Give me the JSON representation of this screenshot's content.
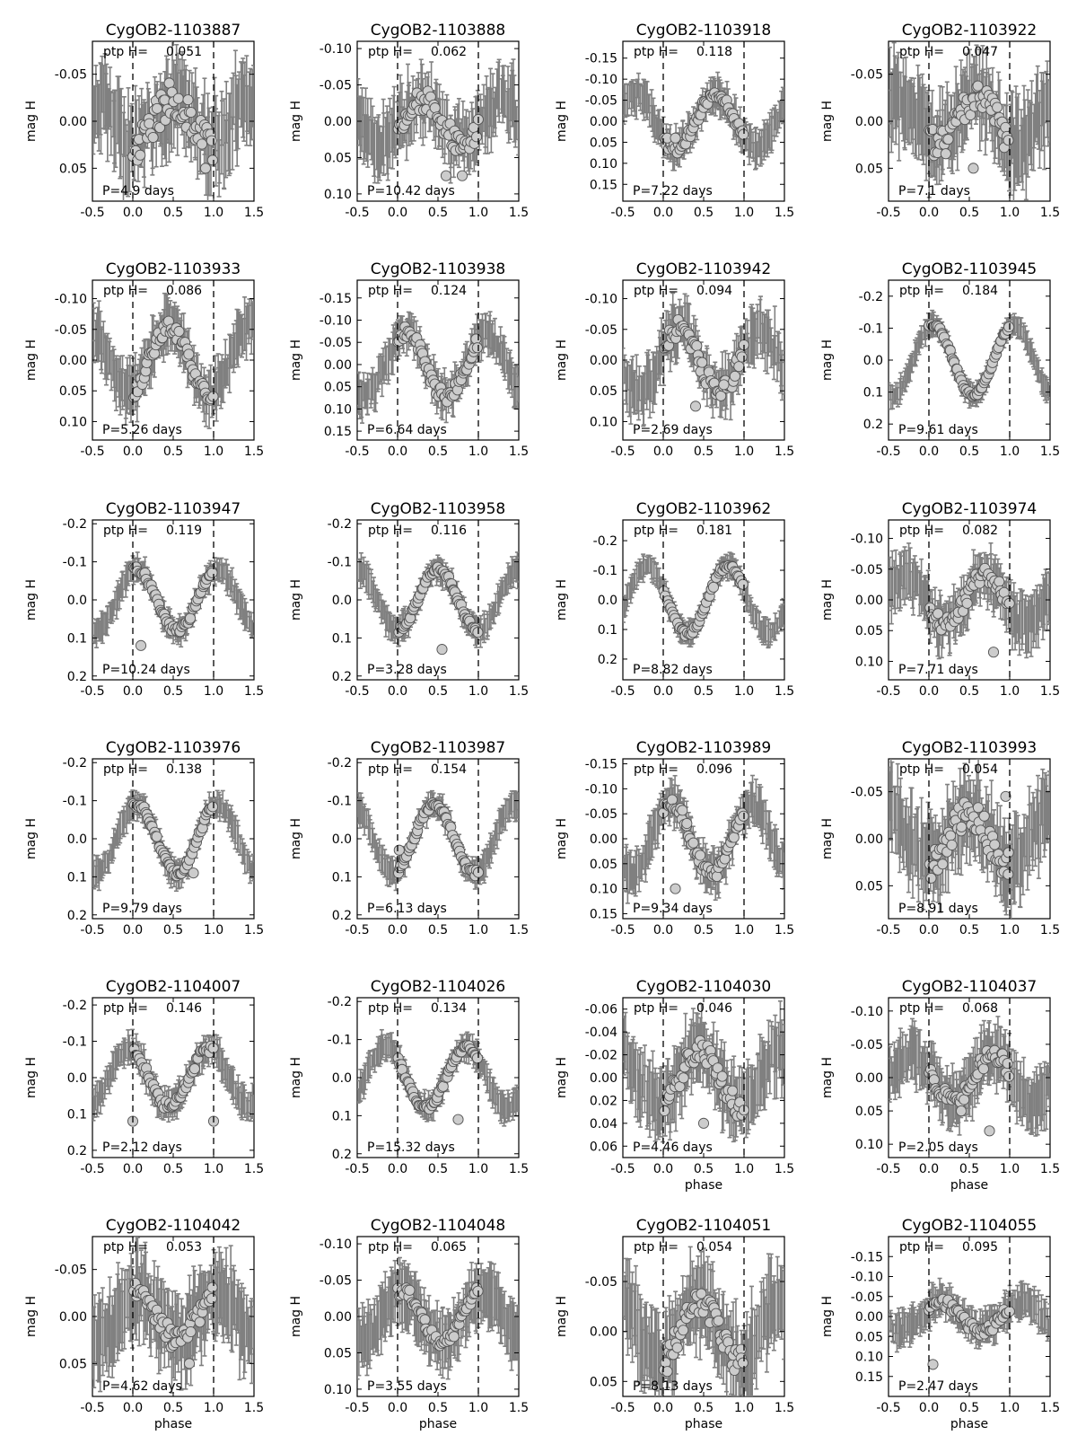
{
  "figure": {
    "series_color": "#808080",
    "point_color": "#cccccc"
  },
  "chart_data": [
    {
      "type": "scatter",
      "title": "CygOB2-1103887",
      "ptp_label": "ptp H=",
      "ptp_value": "0.051",
      "period_label": "P=4.9 days",
      "ylabel": "mag H",
      "xlabel": "",
      "xlim": [
        -0.5,
        1.5
      ],
      "ylim": [
        0.085,
        -0.085
      ],
      "yticks": [
        "-0.05",
        "0.00",
        "0.05"
      ],
      "xticks": [
        "-0.5",
        "0.0",
        "0.5",
        "1.0",
        "1.5"
      ],
      "amplitude": 0.05,
      "min_phase": 0.5,
      "noise": 0.025,
      "err": 0.035,
      "outliers": [
        [
          0.9,
          0.05
        ]
      ]
    },
    {
      "type": "scatter",
      "title": "CygOB2-1103888",
      "ptp_label": "ptp H=",
      "ptp_value": "0.062",
      "period_label": "P=10.42 days",
      "ylabel": "mag H",
      "xlabel": "",
      "xlim": [
        -0.5,
        1.5
      ],
      "ylim": [
        0.11,
        -0.11
      ],
      "yticks": [
        "-0.10",
        "-0.05",
        "0.00",
        "0.05",
        "0.10"
      ],
      "xticks": [
        "-0.5",
        "0.0",
        "0.5",
        "1.0",
        "1.5"
      ],
      "amplitude": 0.06,
      "min_phase": 0.3,
      "noise": 0.02,
      "err": 0.035,
      "outliers": [
        [
          0.6,
          0.075
        ],
        [
          0.8,
          0.075
        ]
      ]
    },
    {
      "type": "scatter",
      "title": "CygOB2-1103918",
      "ptp_label": "ptp H=",
      "ptp_value": "0.118",
      "period_label": "P=7.22 days",
      "ylabel": "mag H",
      "xlabel": "",
      "xlim": [
        -0.5,
        1.5
      ],
      "ylim": [
        0.19,
        -0.19
      ],
      "yticks": [
        "-0.15",
        "-0.10",
        "-0.05",
        "0.00",
        "0.05",
        "0.10",
        "0.15"
      ],
      "xticks": [
        "-0.5",
        "0.0",
        "0.5",
        "1.0",
        "1.5"
      ],
      "amplitude": 0.13,
      "min_phase": 0.65,
      "noise": 0.015,
      "err": 0.035,
      "outliers": [
        [
          0.05,
          0.04
        ],
        [
          0.15,
          0.04
        ]
      ]
    },
    {
      "type": "scatter",
      "title": "CygOB2-1103922",
      "ptp_label": "ptp H=",
      "ptp_value": "0.047",
      "period_label": "P=7.1 days",
      "ylabel": "mag H",
      "xlabel": "",
      "xlim": [
        -0.5,
        1.5
      ],
      "ylim": [
        0.085,
        -0.085
      ],
      "yticks": [
        "-0.05",
        "0.00",
        "0.05"
      ],
      "xticks": [
        "-0.5",
        "0.0",
        "0.5",
        "1.0",
        "1.5"
      ],
      "amplitude": 0.05,
      "min_phase": 0.6,
      "noise": 0.02,
      "err": 0.035,
      "outliers": [
        [
          0.55,
          0.05
        ]
      ]
    },
    {
      "type": "scatter",
      "title": "CygOB2-1103933",
      "ptp_label": "ptp H=",
      "ptp_value": "0.086",
      "period_label": "P=5.26 days",
      "ylabel": "mag H",
      "xlabel": "",
      "xlim": [
        -0.5,
        1.5
      ],
      "ylim": [
        0.13,
        -0.13
      ],
      "yticks": [
        "-0.10",
        "-0.05",
        "0.00",
        "0.05",
        "0.10"
      ],
      "xticks": [
        "-0.5",
        "0.0",
        "0.5",
        "1.0",
        "1.5"
      ],
      "amplitude": 0.11,
      "min_phase": 0.45,
      "noise": 0.015,
      "err": 0.035,
      "outliers": []
    },
    {
      "type": "scatter",
      "title": "CygOB2-1103938",
      "ptp_label": "ptp H=",
      "ptp_value": "0.124",
      "period_label": "P=6.64 days",
      "ylabel": "mag H",
      "xlabel": "",
      "xlim": [
        -0.5,
        1.5
      ],
      "ylim": [
        0.17,
        -0.19
      ],
      "yticks": [
        "-0.15",
        "-0.10",
        "-0.05",
        "0.00",
        "0.05",
        "0.10",
        "0.15"
      ],
      "xticks": [
        "-0.5",
        "0.0",
        "0.5",
        "1.0",
        "1.5"
      ],
      "amplitude": 0.14,
      "min_phase": 0.1,
      "noise": 0.02,
      "err": 0.035,
      "outliers": []
    },
    {
      "type": "scatter",
      "title": "CygOB2-1103942",
      "ptp_label": "ptp H=",
      "ptp_value": "0.094",
      "period_label": "P=2.69 days",
      "ylabel": "mag H",
      "xlabel": "",
      "xlim": [
        -0.5,
        1.5
      ],
      "ylim": [
        0.13,
        -0.13
      ],
      "yticks": [
        "-0.10",
        "-0.05",
        "0.00",
        "0.05",
        "0.10"
      ],
      "xticks": [
        "-0.5",
        "0.0",
        "0.5",
        "1.0",
        "1.5"
      ],
      "amplitude": 0.1,
      "min_phase": 0.2,
      "noise": 0.02,
      "err": 0.035,
      "outliers": [
        [
          0.4,
          0.075
        ],
        [
          0.75,
          0.04
        ]
      ]
    },
    {
      "type": "scatter",
      "title": "CygOB2-1103945",
      "ptp_label": "ptp H=",
      "ptp_value": "0.184",
      "period_label": "P=9.61 days",
      "ylabel": "mag H",
      "xlabel": "",
      "xlim": [
        -0.5,
        1.5
      ],
      "ylim": [
        0.25,
        -0.25
      ],
      "yticks": [
        "-0.2",
        "-0.1",
        "0.0",
        "0.1",
        "0.2"
      ],
      "xticks": [
        "-0.5",
        "0.0",
        "0.5",
        "1.0",
        "1.5"
      ],
      "amplitude": 0.22,
      "min_phase": 0.05,
      "noise": 0.008,
      "err": 0.03,
      "outliers": []
    },
    {
      "type": "scatter",
      "title": "CygOB2-1103947",
      "ptp_label": "ptp H=",
      "ptp_value": "0.119",
      "period_label": "P=10.24 days",
      "ylabel": "mag H",
      "xlabel": "",
      "xlim": [
        -0.5,
        1.5
      ],
      "ylim": [
        0.21,
        -0.21
      ],
      "yticks": [
        "-0.2",
        "-0.1",
        "0.0",
        "0.1",
        "0.2"
      ],
      "xticks": [
        "-0.5",
        "0.0",
        "0.5",
        "1.0",
        "1.5"
      ],
      "amplitude": 0.16,
      "min_phase": 0.05,
      "noise": 0.01,
      "err": 0.03,
      "outliers": [
        [
          0.1,
          0.12
        ]
      ]
    },
    {
      "type": "scatter",
      "title": "CygOB2-1103958",
      "ptp_label": "ptp H=",
      "ptp_value": "0.116",
      "period_label": "P=3.28 days",
      "ylabel": "mag H",
      "xlabel": "",
      "xlim": [
        -0.5,
        1.5
      ],
      "ylim": [
        0.21,
        -0.21
      ],
      "yticks": [
        "-0.2",
        "-0.1",
        "0.0",
        "0.1",
        "0.2"
      ],
      "xticks": [
        "-0.5",
        "0.0",
        "0.5",
        "1.0",
        "1.5"
      ],
      "amplitude": 0.16,
      "min_phase": 0.5,
      "noise": 0.01,
      "err": 0.03,
      "outliers": [
        [
          0.55,
          0.13
        ]
      ]
    },
    {
      "type": "scatter",
      "title": "CygOB2-1103962",
      "ptp_label": "ptp H=",
      "ptp_value": "0.181",
      "period_label": "P=8.82 days",
      "ylabel": "mag H",
      "xlabel": "",
      "xlim": [
        -0.5,
        1.5
      ],
      "ylim": [
        0.27,
        -0.27
      ],
      "yticks": [
        "-0.2",
        "-0.1",
        "0.0",
        "0.1",
        "0.2"
      ],
      "xticks": [
        "-0.5",
        "0.0",
        "0.5",
        "1.0",
        "1.5"
      ],
      "amplitude": 0.23,
      "min_phase": 0.8,
      "noise": 0.01,
      "err": 0.035,
      "outliers": []
    },
    {
      "type": "scatter",
      "title": "CygOB2-1103974",
      "ptp_label": "ptp H=",
      "ptp_value": "0.082",
      "period_label": "P=7.71 days",
      "ylabel": "mag H",
      "xlabel": "",
      "xlim": [
        -0.5,
        1.5
      ],
      "ylim": [
        0.13,
        -0.13
      ],
      "yticks": [
        "-0.10",
        "-0.05",
        "0.00",
        "0.05",
        "0.10"
      ],
      "xticks": [
        "-0.5",
        "0.0",
        "0.5",
        "1.0",
        "1.5"
      ],
      "amplitude": 0.08,
      "min_phase": 0.7,
      "noise": 0.015,
      "err": 0.035,
      "outliers": [
        [
          0.8,
          0.085
        ]
      ]
    },
    {
      "type": "scatter",
      "title": "CygOB2-1103976",
      "ptp_label": "ptp H=",
      "ptp_value": "0.138",
      "period_label": "P=9.79 days",
      "ylabel": "mag H",
      "xlabel": "",
      "xlim": [
        -0.5,
        1.5
      ],
      "ylim": [
        0.21,
        -0.21
      ],
      "yticks": [
        "-0.2",
        "-0.1",
        "0.0",
        "0.1",
        "0.2"
      ],
      "xticks": [
        "-0.5",
        "0.0",
        "0.5",
        "1.0",
        "1.5"
      ],
      "amplitude": 0.18,
      "min_phase": 0.05,
      "noise": 0.01,
      "err": 0.03,
      "outliers": [
        [
          0.75,
          0.09
        ]
      ]
    },
    {
      "type": "scatter",
      "title": "CygOB2-1103987",
      "ptp_label": "ptp H=",
      "ptp_value": "0.154",
      "period_label": "P=6.13 days",
      "ylabel": "mag H",
      "xlabel": "",
      "xlim": [
        -0.5,
        1.5
      ],
      "ylim": [
        0.21,
        -0.21
      ],
      "yticks": [
        "-0.2",
        "-0.1",
        "0.0",
        "0.1",
        "0.2"
      ],
      "xticks": [
        "-0.5",
        "0.0",
        "0.5",
        "1.0",
        "1.5"
      ],
      "amplitude": 0.18,
      "min_phase": 0.45,
      "noise": 0.01,
      "err": 0.03,
      "outliers": [
        [
          0.02,
          0.03
        ]
      ]
    },
    {
      "type": "scatter",
      "title": "CygOB2-1103989",
      "ptp_label": "ptp H=",
      "ptp_value": "0.096",
      "period_label": "P=9.34 days",
      "ylabel": "mag H",
      "xlabel": "",
      "xlim": [
        -0.5,
        1.5
      ],
      "ylim": [
        0.16,
        -0.16
      ],
      "yticks": [
        "-0.15",
        "-0.10",
        "-0.05",
        "0.00",
        "0.05",
        "0.10",
        "0.15"
      ],
      "xticks": [
        "-0.5",
        "0.0",
        "0.5",
        "1.0",
        "1.5"
      ],
      "amplitude": 0.14,
      "min_phase": 0.1,
      "noise": 0.015,
      "err": 0.035,
      "outliers": [
        [
          0.15,
          0.1
        ]
      ]
    },
    {
      "type": "scatter",
      "title": "CygOB2-1103993",
      "ptp_label": "ptp H=",
      "ptp_value": "0.054",
      "period_label": "P=8.91 days",
      "ylabel": "mag H",
      "xlabel": "",
      "xlim": [
        -0.5,
        1.5
      ],
      "ylim": [
        0.085,
        -0.085
      ],
      "yticks": [
        "-0.05",
        "0.00",
        "0.05"
      ],
      "xticks": [
        "-0.5",
        "0.0",
        "0.5",
        "1.0",
        "1.5"
      ],
      "amplitude": 0.055,
      "min_phase": 0.5,
      "noise": 0.02,
      "err": 0.035,
      "outliers": [
        [
          0.95,
          -0.045
        ]
      ]
    },
    {
      "type": "scatter",
      "title": "CygOB2-1104007",
      "ptp_label": "ptp H=",
      "ptp_value": "0.146",
      "period_label": "P=2.12 days",
      "ylabel": "mag H",
      "xlabel": "",
      "xlim": [
        -0.5,
        1.5
      ],
      "ylim": [
        0.22,
        -0.22
      ],
      "yticks": [
        "-0.2",
        "-0.1",
        "0.0",
        "0.1",
        "0.2"
      ],
      "xticks": [
        "-0.5",
        "0.0",
        "0.5",
        "1.0",
        "1.5"
      ],
      "amplitude": 0.16,
      "min_phase": 0.95,
      "noise": 0.015,
      "err": 0.035,
      "outliers": [
        [
          0.0,
          0.12
        ],
        [
          1.0,
          0.12
        ]
      ]
    },
    {
      "type": "scatter",
      "title": "CygOB2-1104026",
      "ptp_label": "ptp H=",
      "ptp_value": "0.134",
      "period_label": "P=15.32 days",
      "ylabel": "mag H",
      "xlabel": "",
      "xlim": [
        -0.5,
        1.5
      ],
      "ylim": [
        0.21,
        -0.21
      ],
      "yticks": [
        "-0.2",
        "-0.1",
        "0.0",
        "0.1",
        "0.2"
      ],
      "xticks": [
        "-0.5",
        "0.0",
        "0.5",
        "1.0",
        "1.5"
      ],
      "amplitude": 0.16,
      "min_phase": 0.85,
      "noise": 0.01,
      "err": 0.03,
      "outliers": [
        [
          0.75,
          0.11
        ]
      ]
    },
    {
      "type": "scatter",
      "title": "CygOB2-1104030",
      "ptp_label": "ptp H=",
      "ptp_value": "0.046",
      "period_label": "P=4.46 days",
      "ylabel": "mag H",
      "xlabel": "phase",
      "xlim": [
        -0.5,
        1.5
      ],
      "ylim": [
        0.07,
        -0.07
      ],
      "yticks": [
        "-0.06",
        "-0.04",
        "-0.02",
        "0.00",
        "0.02",
        "0.04",
        "0.06"
      ],
      "xticks": [
        "-0.5",
        "0.0",
        "0.5",
        "1.0",
        "1.5"
      ],
      "amplitude": 0.05,
      "min_phase": 0.45,
      "noise": 0.012,
      "err": 0.025,
      "outliers": [
        [
          0.5,
          0.04
        ]
      ]
    },
    {
      "type": "scatter",
      "title": "CygOB2-1104037",
      "ptp_label": "ptp H=",
      "ptp_value": "0.068",
      "period_label": "P=2.05 days",
      "ylabel": "mag H",
      "xlabel": "phase",
      "xlim": [
        -0.5,
        1.5
      ],
      "ylim": [
        0.12,
        -0.12
      ],
      "yticks": [
        "-0.10",
        "-0.05",
        "0.00",
        "0.05",
        "0.10"
      ],
      "xticks": [
        "-0.5",
        "0.0",
        "0.5",
        "1.0",
        "1.5"
      ],
      "amplitude": 0.07,
      "min_phase": 0.8,
      "noise": 0.015,
      "err": 0.035,
      "outliers": [
        [
          0.4,
          0.05
        ],
        [
          0.75,
          0.08
        ]
      ]
    },
    {
      "type": "scatter",
      "title": "CygOB2-1104042",
      "ptp_label": "ptp H=",
      "ptp_value": "0.053",
      "period_label": "P=4.62 days",
      "ylabel": "mag H",
      "xlabel": "phase",
      "xlim": [
        -0.5,
        1.5
      ],
      "ylim": [
        0.085,
        -0.085
      ],
      "yticks": [
        "-0.05",
        "0.00",
        "0.05"
      ],
      "xticks": [
        "-0.5",
        "0.0",
        "0.5",
        "1.0",
        "1.5"
      ],
      "amplitude": 0.05,
      "min_phase": 0.05,
      "noise": 0.015,
      "err": 0.035,
      "outliers": [
        [
          0.7,
          0.05
        ]
      ]
    },
    {
      "type": "scatter",
      "title": "CygOB2-1104048",
      "ptp_label": "ptp H=",
      "ptp_value": "0.065",
      "period_label": "P=3.55 days",
      "ylabel": "mag H",
      "xlabel": "phase",
      "xlim": [
        -0.5,
        1.5
      ],
      "ylim": [
        0.11,
        -0.11
      ],
      "yticks": [
        "-0.10",
        "-0.05",
        "0.00",
        "0.05",
        "0.10"
      ],
      "xticks": [
        "-0.5",
        "0.0",
        "0.5",
        "1.0",
        "1.5"
      ],
      "amplitude": 0.07,
      "min_phase": 0.05,
      "noise": 0.01,
      "err": 0.035,
      "outliers": []
    },
    {
      "type": "scatter",
      "title": "CygOB2-1104051",
      "ptp_label": "ptp H=",
      "ptp_value": "0.054",
      "period_label": "P=8.13 days",
      "ylabel": "mag H",
      "xlabel": "phase",
      "xlim": [
        -0.5,
        1.5
      ],
      "ylim": [
        0.065,
        -0.095
      ],
      "yticks": [
        "-0.05",
        "0.00",
        "0.05"
      ],
      "xticks": [
        "-0.5",
        "0.0",
        "0.5",
        "1.0",
        "1.5"
      ],
      "amplitude": 0.06,
      "min_phase": 0.45,
      "noise": 0.015,
      "err": 0.035,
      "outliers": [
        [
          0.05,
          0.04
        ]
      ]
    },
    {
      "type": "scatter",
      "title": "CygOB2-1104055",
      "ptp_label": "ptp H=",
      "ptp_value": "0.095",
      "period_label": "P=2.47 days",
      "ylabel": "mag H",
      "xlabel": "phase",
      "xlim": [
        -0.5,
        1.5
      ],
      "ylim": [
        0.2,
        -0.2
      ],
      "yticks": [
        "-0.15",
        "-0.10",
        "-0.05",
        "0.00",
        "0.05",
        "0.10",
        "0.15"
      ],
      "xticks": [
        "-0.5",
        "0.0",
        "0.5",
        "1.0",
        "1.5"
      ],
      "amplitude": 0.07,
      "min_phase": 0.15,
      "noise": 0.015,
      "err": 0.035,
      "outliers": [
        [
          0.05,
          0.12
        ]
      ]
    }
  ]
}
